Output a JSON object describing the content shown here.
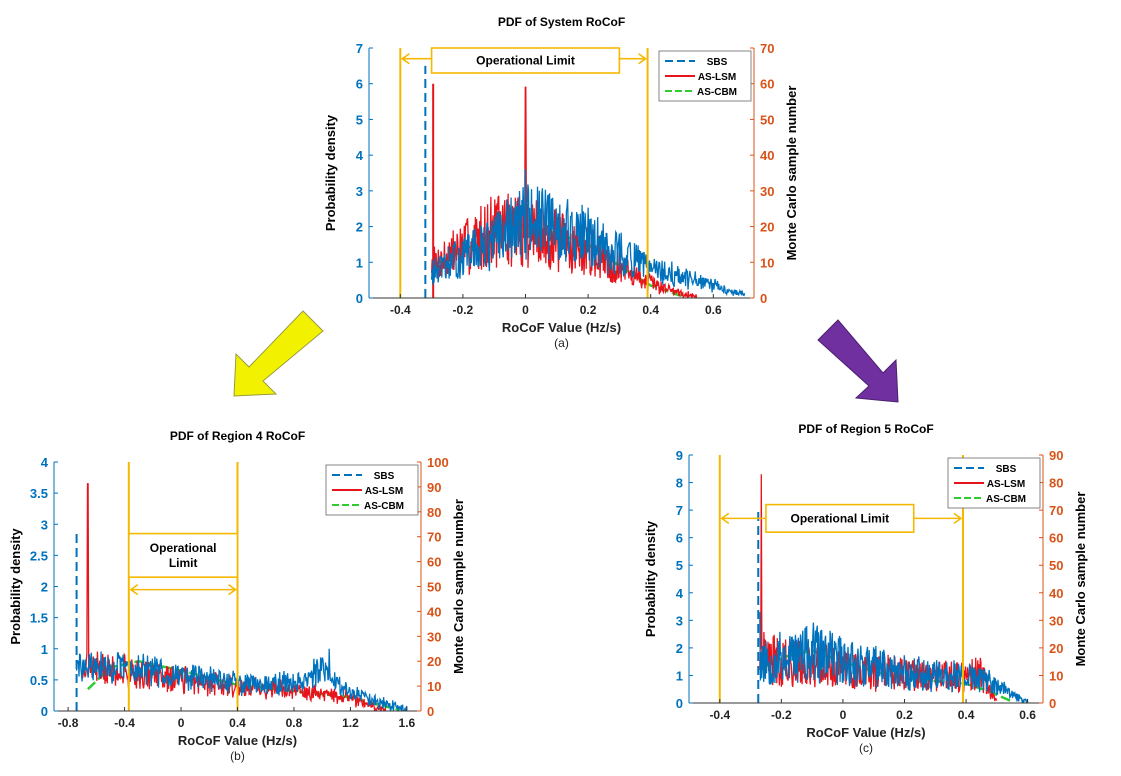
{
  "chart_data": [
    {
      "id": "a",
      "type": "line",
      "title": "PDF of System RoCoF",
      "caption": "(a)",
      "xlabel": "RoCoF Value (Hz/s)",
      "ylabel_left": "Probability density",
      "ylabel_right": "Monte Carlo sample number",
      "xlim": [
        -0.5,
        0.73
      ],
      "ylim_left": [
        0,
        7
      ],
      "ylim_right": [
        0,
        70
      ],
      "xticks": [
        -0.4,
        -0.2,
        0,
        0.2,
        0.4,
        0.6
      ],
      "xtick_labels": [
        "-0.4",
        "-0.2",
        "0",
        "0.2",
        "0.4",
        "0.6"
      ],
      "yticks_left": [
        "0",
        "1",
        "2",
        "3",
        "4",
        "5",
        "6",
        "7"
      ],
      "yticks_right": [
        "0",
        "10",
        "20",
        "30",
        "40",
        "50",
        "60",
        "70"
      ],
      "limit_lines": [
        -0.4,
        0.39
      ],
      "limit_label": "Operational Limit",
      "limit_label_lines": [
        "Operational Limit"
      ],
      "limit_arrow_y": 6.7,
      "limit_box": [
        -0.3,
        0.3,
        6.3,
        7.0
      ],
      "legend": [
        "SBS",
        "AS-LSM",
        "AS-CBM"
      ],
      "legend_position": "top-right",
      "series": [
        {
          "name": "SBS",
          "style": "dashed-spike",
          "color": "#0072BD",
          "x": -0.32,
          "y": 6.5
        },
        {
          "name": "AS-LSM",
          "style": "spike",
          "color": "#E8141C",
          "x": -0.295,
          "y": 6.0
        },
        {
          "name": "AS-CBM",
          "style": "curve",
          "color": "#2ECC2E",
          "x": [
            -0.3,
            -0.2,
            -0.1,
            0,
            0.1,
            0.2,
            0.3,
            0.4,
            0.5
          ],
          "y": [
            0.9,
            1.3,
            1.8,
            2.05,
            1.8,
            1.5,
            0.9,
            0.35,
            0.05
          ]
        },
        {
          "name": "AS-LSM",
          "style": "noisy",
          "color": "#E8141C",
          "seed": 7,
          "x_start": -0.3,
          "x_end": 0.55,
          "points": 480,
          "envelope_x": [
            -0.3,
            -0.1,
            0,
            0.2,
            0.4,
            0.55
          ],
          "envelope_y": [
            0.9,
            1.9,
            1.9,
            1.3,
            0.4,
            0.02
          ],
          "noise": 0.55,
          "peak": [
            0,
            5.9
          ]
        },
        {
          "name": "SBS",
          "style": "noisy",
          "color": "#0072BD",
          "seed": 13,
          "x_start": -0.3,
          "x_end": 0.7,
          "points": 520,
          "envelope_x": [
            -0.3,
            -0.1,
            0,
            0.2,
            0.4,
            0.7
          ],
          "envelope_y": [
            0.7,
            1.6,
            2.2,
            1.7,
            0.8,
            0.1
          ],
          "noise": 0.5,
          "peak": [
            0,
            3.6
          ]
        }
      ]
    },
    {
      "id": "b",
      "type": "line",
      "title": "PDF of Region 4 RoCoF",
      "caption": "(b)",
      "xlabel": "RoCoF Value (Hz/s)",
      "ylabel_left": "Probability density",
      "ylabel_right": "Monte Carlo sample number",
      "xlim": [
        -0.9,
        1.7
      ],
      "ylim_left": [
        0,
        4
      ],
      "ylim_right": [
        0,
        100
      ],
      "xticks": [
        -0.8,
        -0.4,
        0,
        0.4,
        0.8,
        1.2,
        1.6
      ],
      "xtick_labels": [
        "-0.8",
        "-0.4",
        "0",
        "0.4",
        "0.8",
        "1.2",
        "1.6"
      ],
      "yticks_left": [
        "0",
        "0.5",
        "1",
        "1.5",
        "2",
        "2.5",
        "3",
        "3.5",
        "4"
      ],
      "yticks_right": [
        "0",
        "10",
        "20",
        "30",
        "40",
        "50",
        "60",
        "70",
        "80",
        "90",
        "100"
      ],
      "limit_lines": [
        -0.37,
        0.4
      ],
      "limit_label": "Operational Limit",
      "limit_label_lines": [
        "Operational",
        "Limit"
      ],
      "limit_arrow_y": 1.95,
      "limit_box": [
        -0.37,
        0.4,
        2.15,
        2.85
      ],
      "legend": [
        "SBS",
        "AS-LSM",
        "AS-CBM"
      ],
      "legend_position": "top-right",
      "series": [
        {
          "name": "SBS",
          "style": "dashed-spike",
          "color": "#0072BD",
          "x": -0.74,
          "y": 2.85
        },
        {
          "name": "AS-CBM",
          "style": "curve",
          "color": "#2ECC2E",
          "x": [
            -0.66,
            -0.5,
            -0.3,
            0,
            0.4,
            0.8,
            1.2,
            1.4,
            1.55
          ],
          "y": [
            0.35,
            0.7,
            0.8,
            0.65,
            0.42,
            0.32,
            0.22,
            0.1,
            0.02
          ]
        },
        {
          "name": "AS-LSM",
          "style": "noisy",
          "color": "#E8141C",
          "seed": 21,
          "x_start": -0.7,
          "x_end": 1.45,
          "points": 520,
          "envelope_x": [
            -0.7,
            -0.4,
            0,
            0.4,
            0.8,
            1.2,
            1.45
          ],
          "envelope_y": [
            0.7,
            0.65,
            0.5,
            0.4,
            0.32,
            0.22,
            0.02
          ],
          "noise": 0.35,
          "peak": [
            -0.66,
            3.65
          ]
        },
        {
          "name": "SBS",
          "style": "noisy",
          "color": "#0072BD",
          "seed": 29,
          "x_start": -0.74,
          "x_end": 1.6,
          "points": 540,
          "envelope_x": [
            -0.74,
            -0.4,
            0,
            0.4,
            0.8,
            1.0,
            1.2,
            1.6
          ],
          "envelope_y": [
            0.7,
            0.7,
            0.58,
            0.45,
            0.45,
            0.65,
            0.3,
            0.02
          ],
          "noise": 0.32,
          "peak": [
            1.05,
            1.0
          ]
        }
      ]
    },
    {
      "id": "c",
      "type": "line",
      "title": "PDF of Region 5 RoCoF",
      "caption": "(c)",
      "xlabel": "RoCoF Value (Hz/s)",
      "ylabel_left": "Probability density",
      "ylabel_right": "Monte Carlo sample number",
      "xlim": [
        -0.5,
        0.65
      ],
      "ylim_left": [
        0,
        9
      ],
      "ylim_right": [
        0,
        90
      ],
      "xticks": [
        -0.4,
        -0.2,
        0,
        0.2,
        0.4,
        0.6
      ],
      "xtick_labels": [
        "-0.4",
        "-0.2",
        "0",
        "0.2",
        "0.4",
        "0.6"
      ],
      "yticks_left": [
        "0",
        "1",
        "2",
        "3",
        "4",
        "5",
        "6",
        "7",
        "8",
        "9"
      ],
      "yticks_right": [
        "0",
        "10",
        "20",
        "30",
        "40",
        "50",
        "60",
        "70",
        "80",
        "90"
      ],
      "limit_lines": [
        -0.4,
        0.39
      ],
      "limit_label": "Operational Limit",
      "limit_label_lines": [
        "Operational Limit"
      ],
      "limit_arrow_y": 6.7,
      "limit_box": [
        -0.25,
        0.23,
        6.2,
        7.2
      ],
      "legend": [
        "SBS",
        "AS-LSM",
        "AS-CBM"
      ],
      "legend_position": "top-right",
      "series": [
        {
          "name": "SBS",
          "style": "dashed-spike",
          "color": "#0072BD",
          "x": -0.275,
          "y": 7.0
        },
        {
          "name": "AS-CBM",
          "style": "curve",
          "color": "#2ECC2E",
          "x": [
            -0.27,
            -0.2,
            -0.1,
            0,
            0.1,
            0.2,
            0.3,
            0.4,
            0.48,
            0.55
          ],
          "y": [
            1.2,
            1.65,
            1.9,
            1.5,
            1.15,
            0.9,
            0.8,
            0.7,
            0.4,
            0.05
          ]
        },
        {
          "name": "AS-LSM",
          "style": "noisy",
          "color": "#E8141C",
          "seed": 41,
          "x_start": -0.27,
          "x_end": 0.5,
          "points": 460,
          "envelope_x": [
            -0.27,
            -0.1,
            0.1,
            0.3,
            0.45,
            0.5
          ],
          "envelope_y": [
            1.6,
            1.4,
            1.1,
            0.9,
            1.0,
            0.05
          ],
          "noise": 0.6,
          "peak": [
            -0.265,
            8.3
          ]
        },
        {
          "name": "SBS",
          "style": "noisy",
          "color": "#0072BD",
          "seed": 53,
          "x_start": -0.27,
          "x_end": 0.6,
          "points": 480,
          "envelope_x": [
            -0.27,
            -0.1,
            0.1,
            0.3,
            0.45,
            0.6
          ],
          "envelope_y": [
            1.5,
            1.8,
            1.3,
            1.0,
            0.9,
            0.03
          ],
          "noise": 0.6,
          "peak": [
            -0.27,
            3.3
          ]
        }
      ]
    }
  ],
  "colors": {
    "left_axis": "#0072BD",
    "right_axis": "#D95319",
    "limit": "#F5B800",
    "arrow_left_panel": "#F2F200",
    "arrow_right_panel": "#7030A0"
  }
}
